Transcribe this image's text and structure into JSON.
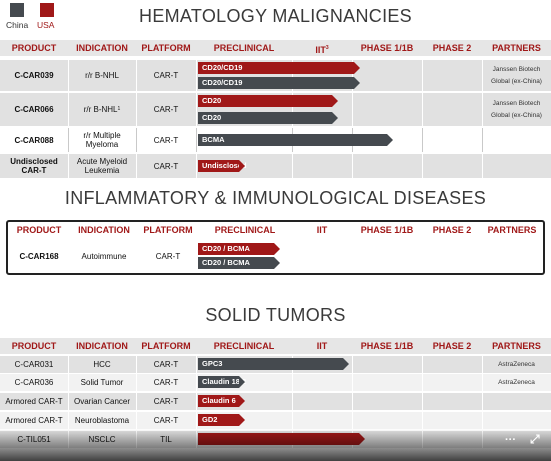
{
  "legend": {
    "china": "China",
    "usa": "USA"
  },
  "sections": {
    "heme": "HEMATOLOGY MALIGNANCIES",
    "inflam": "INFLAMMATORY & IMMUNOLOGICAL DISEASES",
    "solid": "SOLID TUMORS"
  },
  "columns": {
    "product": "PRODUCT",
    "indication": "INDICATION",
    "platform": "PLATFORM",
    "preclinical": "PRECLINICAL",
    "iit": "IIT",
    "iit_sup": "3",
    "phase1": "PHASE 1/1B",
    "phase2": "PHASE 2",
    "partners": "PARTNERS"
  },
  "heme_rows": [
    {
      "product": "C-CAR039",
      "indication": "r/r B-NHL",
      "platform": "CAR-T",
      "partners": [
        "Janssen Biotech",
        "Global (ex-China)"
      ],
      "bars": [
        {
          "label": "CD20/CD19",
          "color": "red",
          "end": 360
        },
        {
          "label": "CD20/CD19",
          "color": "gray",
          "end": 360
        }
      ]
    },
    {
      "product": "C-CAR066",
      "indication": "r/r B-NHL",
      "indication_sup": "1",
      "platform": "CAR-T",
      "partners": [
        "Janssen Biotech",
        "Global (ex-China)"
      ],
      "bars": [
        {
          "label": "CD20",
          "color": "red",
          "end": 338
        },
        {
          "label": "CD20",
          "color": "gray",
          "end": 338
        }
      ]
    },
    {
      "product": "C-CAR088",
      "indication": "r/r Multiple Myeloma",
      "platform": "CAR-T",
      "partners": [],
      "bars": [
        {
          "label": "BCMA",
          "color": "gray",
          "end": 393
        }
      ]
    },
    {
      "product": "Undisclosed CAR-T",
      "indication": "Acute Myeloid Leukemia",
      "platform": "CAR-T",
      "partners": [],
      "bars": [
        {
          "label": "Undisclosed",
          "color": "red",
          "end": 245
        }
      ]
    }
  ],
  "inflam_rows": [
    {
      "product": "C-CAR168",
      "indication": "Autoimmune",
      "platform": "CAR-T",
      "bars": [
        {
          "label": "CD20 / BCMA",
          "color": "red",
          "end": 280
        },
        {
          "label": "CD20 / BCMA",
          "color": "gray",
          "end": 280
        }
      ]
    }
  ],
  "solid_rows": [
    {
      "product": "C-CAR031",
      "indication": "HCC",
      "platform": "CAR-T",
      "partner": "AstraZeneca",
      "bar": {
        "label": "GPC3",
        "color": "gray",
        "end": 349
      }
    },
    {
      "product": "C-CAR036",
      "indication": "Solid Tumor",
      "platform": "CAR-T",
      "partner": "AstraZeneca",
      "bar": {
        "label": "Claudin 18.2",
        "color": "gray",
        "end": 245
      }
    },
    {
      "product": "Armored CAR-T",
      "indication": "Ovarian Cancer",
      "platform": "CAR-T",
      "partner": "",
      "bar": {
        "label": "Claudin 6",
        "color": "red",
        "end": 245
      }
    },
    {
      "product": "Armored CAR-T",
      "indication": "Neuroblastoma",
      "platform": "CAR-T",
      "partner": "",
      "bar": {
        "label": "GD2",
        "color": "red",
        "end": 245
      }
    },
    {
      "product": "C-TIL051",
      "indication": "NSCLC",
      "platform": "TIL",
      "partner": "",
      "bar": {
        "label": "",
        "color": "red",
        "end": 365
      }
    }
  ],
  "controls": {
    "more": "···",
    "expand": "⤢"
  }
}
